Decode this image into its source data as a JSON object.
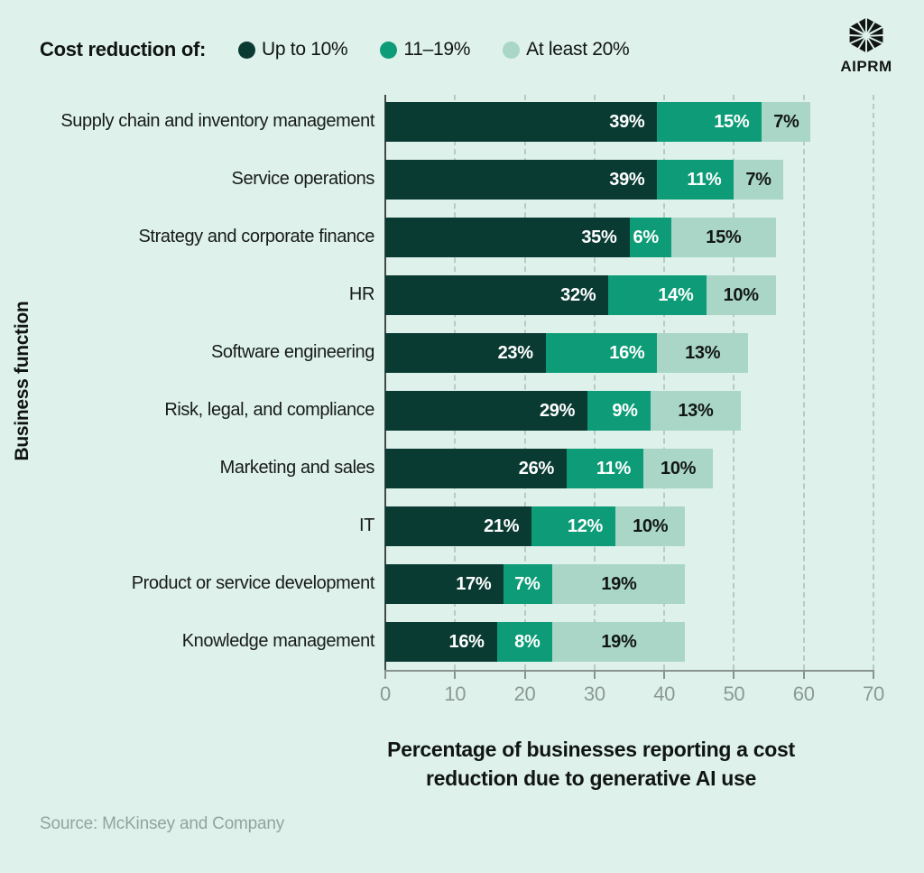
{
  "legend": {
    "title": "Cost reduction of:",
    "items": [
      {
        "label": "Up to 10%",
        "color": "#0A3B33"
      },
      {
        "label": "11–19%",
        "color": "#0D9C77"
      },
      {
        "label": "At least 20%",
        "color": "#A9D6C7"
      }
    ]
  },
  "logo": {
    "text": "AIPRM"
  },
  "chart_data": {
    "type": "bar",
    "orientation": "horizontal",
    "stacked": true,
    "title": "",
    "xlabel": "Percentage of businesses reporting a cost reduction due to generative AI use",
    "xlabel_lines": [
      "Percentage of businesses reporting a cost",
      "reduction due to generative AI use"
    ],
    "ylabel": "Business function",
    "xlim": [
      0,
      70
    ],
    "x_ticks": [
      0,
      10,
      20,
      30,
      40,
      50,
      60,
      70
    ],
    "grid": "vertical-dashed",
    "legend_position": "top",
    "categories": [
      "Supply chain and inventory management",
      "Service operations",
      "Strategy and corporate finance",
      "HR",
      "Software engineering",
      "Risk, legal, and compliance",
      "Marketing and sales",
      "IT",
      "Product or service development",
      "Knowledge management"
    ],
    "series": [
      {
        "name": "Up to 10%",
        "color": "#0A3B33",
        "value_color": "#FFFFFF",
        "value_align": "right",
        "values": [
          39,
          39,
          35,
          32,
          23,
          29,
          26,
          21,
          17,
          16
        ]
      },
      {
        "name": "11–19%",
        "color": "#0D9C77",
        "value_color": "#FFFFFF",
        "value_align": "right",
        "values": [
          15,
          11,
          6,
          14,
          16,
          9,
          11,
          12,
          7,
          8
        ]
      },
      {
        "name": "At least 20%",
        "color": "#A9D6C7",
        "value_color": "#131715",
        "value_align": "center",
        "values": [
          7,
          7,
          15,
          10,
          13,
          13,
          10,
          10,
          19,
          19
        ]
      }
    ],
    "value_suffix": "%"
  },
  "source": "Source: McKinsey and Company"
}
